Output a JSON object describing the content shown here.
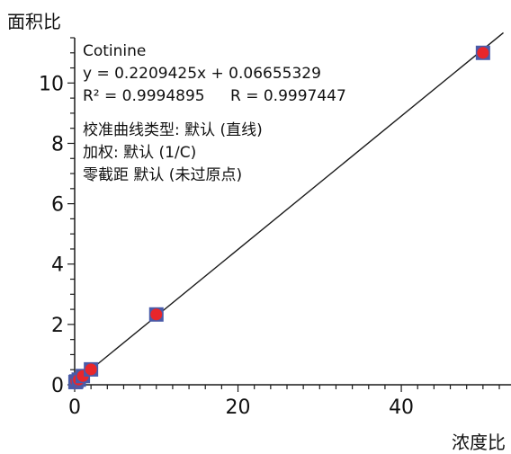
{
  "chart_data": {
    "type": "scatter",
    "ylabel": "面积比",
    "xlabel": "浓度比",
    "xlim": [
      0,
      52
    ],
    "ylim": [
      0,
      11.5
    ],
    "x_ticks": [
      0,
      20,
      40
    ],
    "y_ticks": [
      0,
      2,
      4,
      6,
      8,
      10
    ],
    "grid": false,
    "annotation": {
      "compound": "Cotinine",
      "equation": "y = 0.2209425x + 0.06655329",
      "r2": "R² = 0.9994895",
      "r": "R = 0.9997447",
      "curve_type": "校准曲线类型: 默认 (直线)",
      "weighting": "加权: 默认 (1/C)",
      "origin": "零截距 默认 (未过原点)"
    },
    "fit_line": {
      "slope": 0.2209425,
      "intercept": 0.06655329
    },
    "points": [
      {
        "x": 0.1,
        "y": 0.09
      },
      {
        "x": 0.2,
        "y": 0.11
      },
      {
        "x": 0.5,
        "y": 0.17
      },
      {
        "x": 1.0,
        "y": 0.29
      },
      {
        "x": 2.0,
        "y": 0.51
      },
      {
        "x": 10.0,
        "y": 2.33
      },
      {
        "x": 50.0,
        "y": 11.0
      }
    ],
    "colors": {
      "marker_square": "#4a5ba8",
      "marker_dot": "#e8262b",
      "line": "#1a1a1a",
      "axis": "#1a1a1a"
    }
  }
}
